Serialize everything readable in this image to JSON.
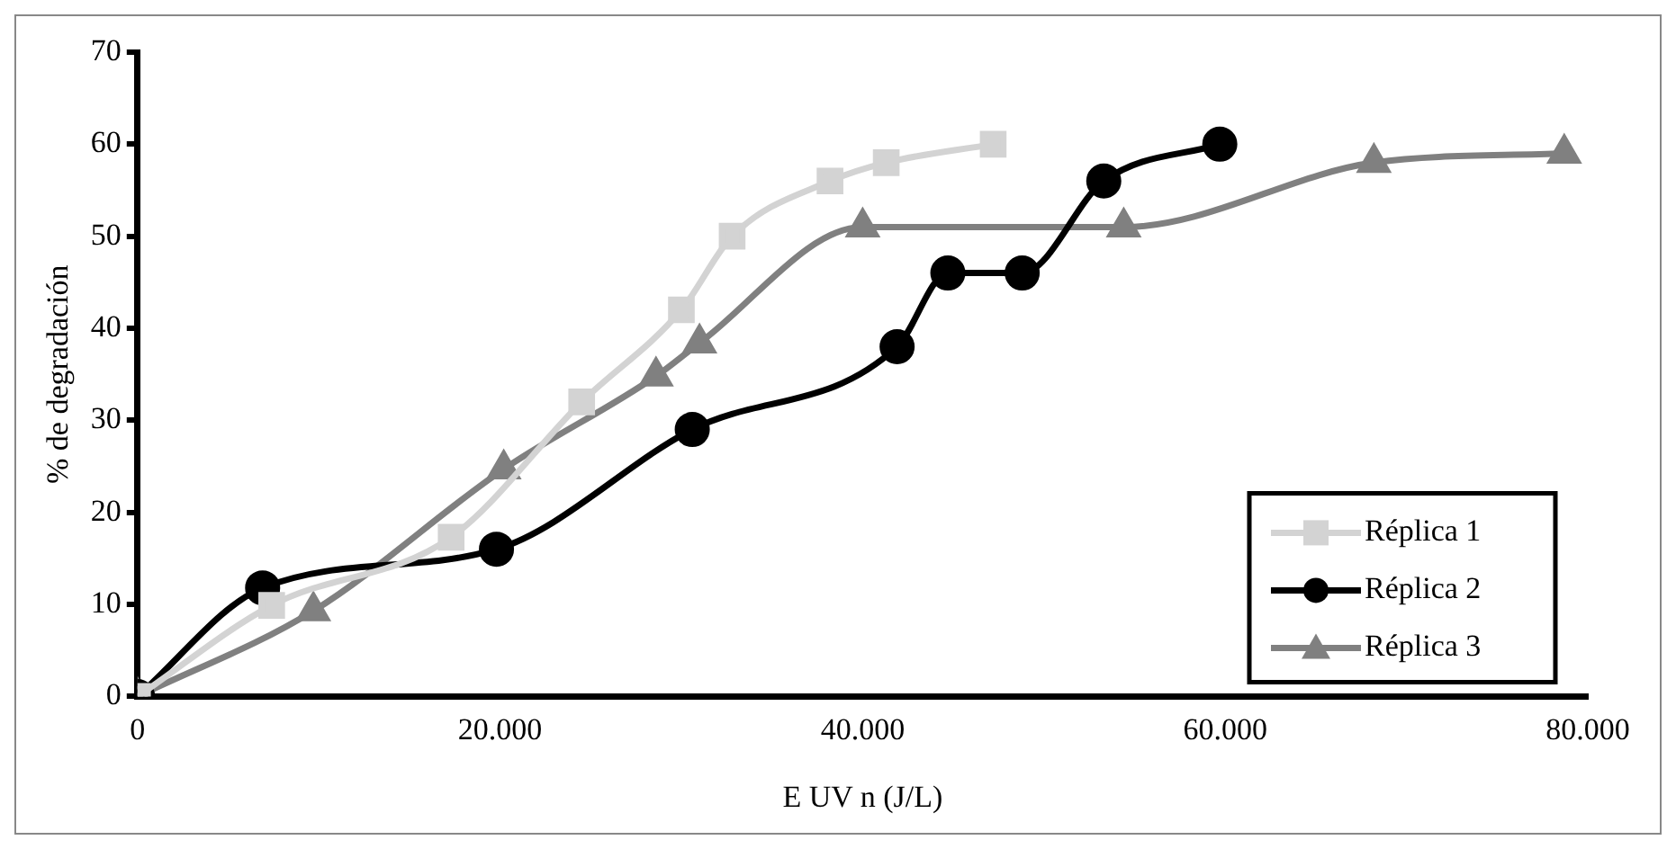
{
  "chart_data": {
    "type": "line",
    "xlabel": "E UV n (J/L)",
    "ylabel": "% de degradación",
    "xlim": [
      0,
      80000
    ],
    "xticks": [
      0,
      {
        "value": 20000,
        "label": "20.000"
      },
      {
        "value": 40000,
        "label": "40.000"
      },
      {
        "value": 60000,
        "label": "60.000"
      },
      {
        "value": 80000,
        "label": "80.000"
      }
    ],
    "ylim": [
      0,
      70
    ],
    "yticks": [
      0,
      10,
      20,
      30,
      40,
      50,
      60,
      70
    ],
    "grid": false,
    "legend": "bottom right",
    "series": [
      {
        "name": "Réplica 1",
        "color": "#d3d3d3",
        "marker": "square",
        "x": [
          0,
          7400,
          17300,
          24500,
          30000,
          32800,
          38200,
          41300,
          47200
        ],
        "values": [
          0,
          9.9,
          17.3,
          32,
          42,
          50,
          56,
          58,
          60
        ]
      },
      {
        "name": "Réplica 2",
        "color": "#000000",
        "marker": "circle",
        "x": [
          0,
          6900,
          19800,
          30600,
          41900,
          44700,
          48800,
          53300,
          59700
        ],
        "values": [
          0,
          11.8,
          16,
          29,
          38,
          46,
          46,
          56,
          60
        ]
      },
      {
        "name": "Réplica 3",
        "color": "#808080",
        "marker": "triangle",
        "x": [
          0,
          9700,
          20200,
          28600,
          31000,
          40000,
          54400,
          68200,
          78700
        ],
        "values": [
          0,
          9.3,
          24.7,
          34.8,
          38.4,
          51,
          51,
          58,
          59
        ]
      }
    ]
  }
}
